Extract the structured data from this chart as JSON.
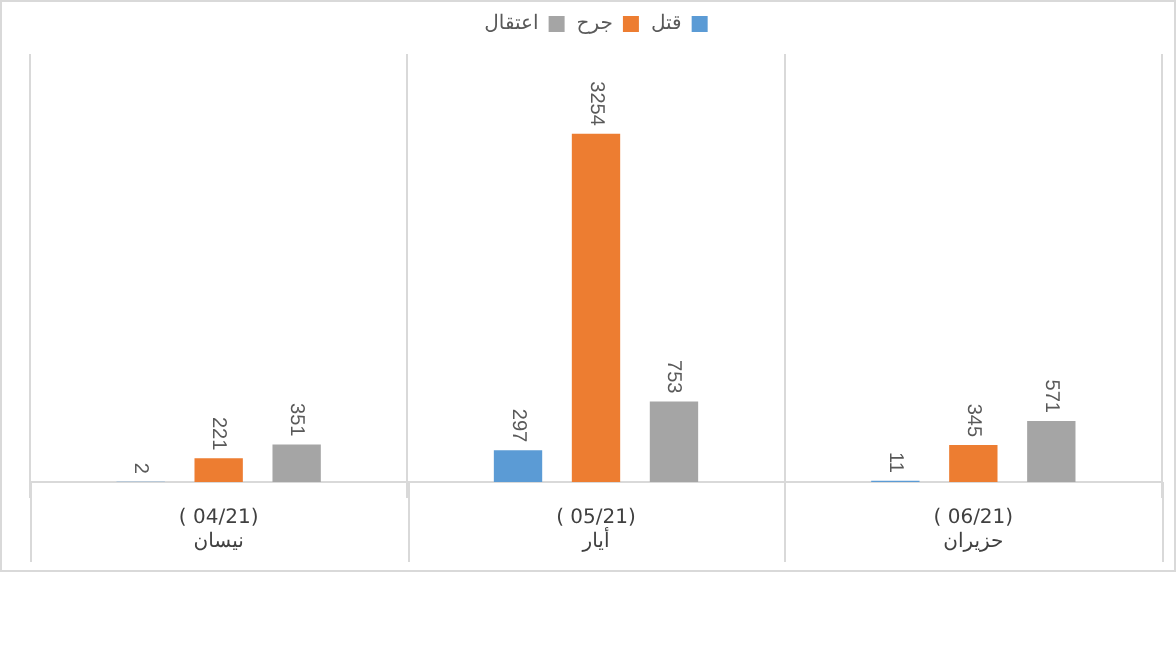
{
  "chart_data": {
    "type": "bar",
    "categories": [
      "( 04/21)\nنيسان",
      "( 05/21)\nأيار",
      "( 06/21)\nحزيران"
    ],
    "series": [
      {
        "name": "قتل",
        "color": "#5b9bd5",
        "values": [
          2,
          297,
          11
        ]
      },
      {
        "name": "جرح",
        "color": "#ed7d31",
        "values": [
          221,
          3254,
          345
        ]
      },
      {
        "name": "اعتقال",
        "color": "#a5a5a5",
        "values": [
          351,
          753,
          571
        ]
      }
    ],
    "data_labels": true,
    "grid": "x",
    "legend": "top"
  }
}
